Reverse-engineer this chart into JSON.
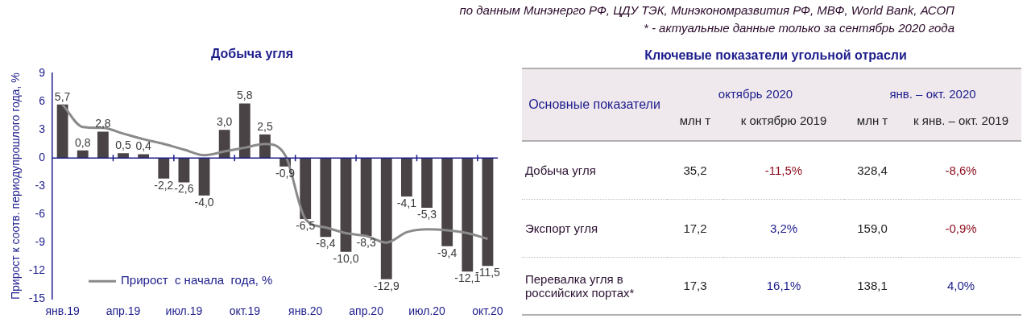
{
  "chart_data": [
    {
      "type": "bar",
      "title": "Добыча угля",
      "ylabel": "Прирост к соотв. периодупрошлого года, %",
      "categories": [
        "янв.19",
        null,
        null,
        "апр.19",
        null,
        null,
        "июл.19",
        null,
        null,
        "окт.19",
        null,
        null,
        "янв.20",
        null,
        null,
        "апр.20",
        null,
        null,
        "июл.20",
        null,
        null,
        "окт.20"
      ],
      "series": [
        {
          "type": "bar",
          "color": "#4a4345",
          "values": [
            5.7,
            0.8,
            2.8,
            0.5,
            0.4,
            -2.2,
            -2.6,
            -4.0,
            3.0,
            5.8,
            2.5,
            -0.9,
            -6.5,
            -8.4,
            -10.0,
            -8.3,
            -12.9,
            -4.1,
            -5.3,
            -9.4,
            -12.1,
            -11.5
          ],
          "value_labels": [
            "5,7",
            "0,8",
            "2,8",
            "0,5",
            "0,4",
            "-2,2",
            "-2,6",
            "-4,0",
            "3,0",
            "5,8",
            "2,5",
            "-0,9",
            "-6,5",
            "-8,4",
            "-10,0",
            "-8,3",
            "-12,9",
            "-4,1",
            "-5,3",
            "-9,4",
            "-12,1",
            "-11,5"
          ]
        },
        {
          "type": "line",
          "name": "Прирост  с начала  года, %",
          "color": "#8a8a8a",
          "values": [
            5.7,
            3.3,
            3.2,
            2.6,
            2.0,
            1.5,
            0.9,
            0.3,
            0.7,
            1.1,
            1.5,
            0.3,
            -6.5,
            -7.4,
            -8.0,
            -8.3,
            -9.0,
            -7.9,
            -7.6,
            -7.7,
            -8.0,
            -8.6
          ]
        }
      ],
      "ref_lines": [
        {
          "axis": "y",
          "value": 0,
          "color": "#1c1c8c"
        }
      ],
      "ylim": [
        -15,
        9
      ],
      "yticks": [
        -15,
        -12,
        -9,
        -6,
        -3,
        0,
        3,
        6,
        9
      ],
      "grid": false,
      "legend": "bottom left",
      "marker": "none",
      "line_style": "solid"
    },
    {
      "type": "other",
      "title": "Ключевые показатели угольной отрасли",
      "ylabel": "Основные показатели",
      "annotations": [
        "по данным Минэнерго РФ, ЦДУ ТЭК, Минэкономразвития РФ, МВФ, World Bank, АСОП",
        "* - актуальные данные только за сентябрь 2020 года",
        "октябрь 2020",
        "янв. – окт. 2020"
      ],
      "categories": [
        "млн т",
        "к октябрю 2019",
        "млн т",
        "к янв. – окт. 2019"
      ],
      "y_categories": [
        "Добыча угля",
        "Экспорт угля",
        "Перевалка угля в российских портах*"
      ],
      "colors": [
        [
          "#222222",
          "#8a0a1a",
          "#222222",
          "#8a0a1a"
        ],
        [
          "#222222",
          "#1c1c8c",
          "#222222",
          "#8a0a1a"
        ],
        [
          "#222222",
          "#1c1c8c",
          "#222222",
          "#1c1c8c"
        ]
      ],
      "cell_labels": [
        [
          "35,2",
          "-11,5%",
          "328,4",
          "-8,6%"
        ],
        [
          "17,2",
          "3,2%",
          "159,0",
          "-0,9%"
        ],
        [
          "17,3",
          "16,1%",
          "138,1",
          "4,0%"
        ]
      ]
    }
  ]
}
